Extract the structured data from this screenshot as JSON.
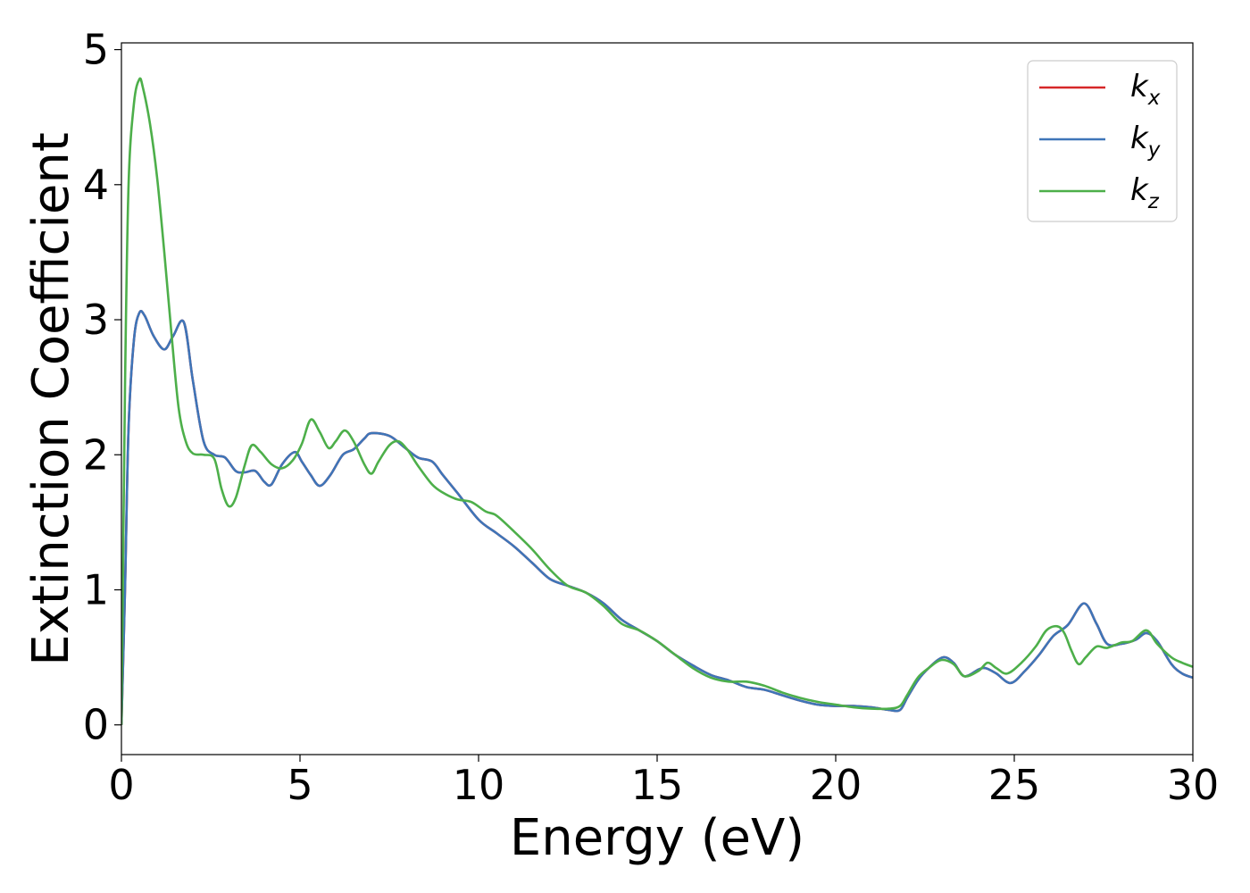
{
  "chart_data": {
    "type": "line",
    "xlabel": "Energy (eV)",
    "ylabel": "Extinction Coefficient",
    "xlim": [
      0,
      30
    ],
    "ylim": [
      -0.22,
      5.05
    ],
    "xticks": [
      0,
      5,
      10,
      15,
      20,
      25,
      30
    ],
    "xtick_labels": [
      "0",
      "5",
      "10",
      "15",
      "20",
      "25",
      "30"
    ],
    "yticks": [
      0,
      1,
      2,
      3,
      4,
      5
    ],
    "ytick_labels": [
      "0",
      "1",
      "2",
      "3",
      "4",
      "5"
    ],
    "grid": false,
    "legend_position": "top-right",
    "series": [
      {
        "name": "k_x",
        "legend_main": "k",
        "legend_sub": "x",
        "color": "#d62728",
        "x": [
          0,
          0.1,
          0.2,
          0.35,
          0.5,
          0.65,
          0.9,
          1.2,
          1.45,
          1.75,
          2.0,
          2.3,
          2.6,
          2.9,
          3.2,
          3.45,
          3.75,
          4.0,
          4.2,
          4.5,
          4.85,
          5.05,
          5.3,
          5.55,
          5.85,
          6.2,
          6.5,
          6.8,
          7.0,
          7.5,
          7.9,
          8.3,
          8.7,
          9.0,
          9.4,
          10.0,
          10.5,
          11.0,
          11.5,
          12.0,
          12.5,
          13.0,
          13.5,
          14.0,
          14.5,
          15.0,
          15.5,
          16.0,
          16.5,
          17.0,
          17.5,
          18.0,
          18.5,
          19.0,
          19.5,
          20.0,
          20.5,
          21.0,
          21.5,
          21.8,
          22.0,
          22.3,
          22.6,
          23.0,
          23.3,
          23.6,
          24.0,
          24.2,
          24.5,
          24.9,
          25.3,
          25.7,
          26.1,
          26.5,
          26.95,
          27.3,
          27.6,
          28.0,
          28.4,
          28.7,
          29.0,
          29.4,
          29.7,
          30.0
        ],
        "y": [
          0.0,
          1.0,
          2.2,
          2.85,
          3.05,
          3.03,
          2.88,
          2.78,
          2.88,
          2.98,
          2.55,
          2.1,
          2.0,
          1.98,
          1.88,
          1.87,
          1.88,
          1.8,
          1.78,
          1.93,
          2.02,
          1.95,
          1.85,
          1.77,
          1.85,
          2.0,
          2.04,
          2.12,
          2.16,
          2.14,
          2.06,
          1.98,
          1.95,
          1.85,
          1.72,
          1.52,
          1.42,
          1.32,
          1.2,
          1.08,
          1.03,
          0.98,
          0.9,
          0.78,
          0.7,
          0.62,
          0.52,
          0.44,
          0.37,
          0.33,
          0.28,
          0.26,
          0.22,
          0.18,
          0.15,
          0.14,
          0.14,
          0.13,
          0.11,
          0.11,
          0.2,
          0.33,
          0.42,
          0.5,
          0.46,
          0.36,
          0.41,
          0.42,
          0.38,
          0.31,
          0.4,
          0.52,
          0.66,
          0.74,
          0.9,
          0.75,
          0.6,
          0.6,
          0.63,
          0.68,
          0.62,
          0.45,
          0.38,
          0.35
        ]
      },
      {
        "name": "k_y",
        "legend_main": "k",
        "legend_sub": "y",
        "color": "#3e75b8",
        "x": [
          0,
          0.1,
          0.2,
          0.35,
          0.5,
          0.65,
          0.9,
          1.2,
          1.45,
          1.75,
          2.0,
          2.3,
          2.6,
          2.9,
          3.2,
          3.45,
          3.75,
          4.0,
          4.2,
          4.5,
          4.85,
          5.05,
          5.3,
          5.55,
          5.85,
          6.2,
          6.5,
          6.8,
          7.0,
          7.5,
          7.9,
          8.3,
          8.7,
          9.0,
          9.4,
          10.0,
          10.5,
          11.0,
          11.5,
          12.0,
          12.5,
          13.0,
          13.5,
          14.0,
          14.5,
          15.0,
          15.5,
          16.0,
          16.5,
          17.0,
          17.5,
          18.0,
          18.5,
          19.0,
          19.5,
          20.0,
          20.5,
          21.0,
          21.5,
          21.8,
          22.0,
          22.3,
          22.6,
          23.0,
          23.3,
          23.6,
          24.0,
          24.2,
          24.5,
          24.9,
          25.3,
          25.7,
          26.1,
          26.5,
          26.95,
          27.3,
          27.6,
          28.0,
          28.4,
          28.7,
          29.0,
          29.4,
          29.7,
          30.0
        ],
        "y": [
          0.0,
          1.0,
          2.2,
          2.85,
          3.05,
          3.03,
          2.88,
          2.78,
          2.88,
          2.98,
          2.55,
          2.1,
          2.0,
          1.98,
          1.88,
          1.87,
          1.88,
          1.8,
          1.78,
          1.93,
          2.02,
          1.95,
          1.85,
          1.77,
          1.85,
          2.0,
          2.04,
          2.12,
          2.16,
          2.14,
          2.06,
          1.98,
          1.95,
          1.85,
          1.72,
          1.52,
          1.42,
          1.32,
          1.2,
          1.08,
          1.03,
          0.98,
          0.9,
          0.78,
          0.7,
          0.62,
          0.52,
          0.44,
          0.37,
          0.33,
          0.28,
          0.26,
          0.22,
          0.18,
          0.15,
          0.14,
          0.14,
          0.13,
          0.11,
          0.11,
          0.2,
          0.33,
          0.42,
          0.5,
          0.46,
          0.36,
          0.41,
          0.42,
          0.38,
          0.31,
          0.4,
          0.52,
          0.66,
          0.74,
          0.9,
          0.75,
          0.6,
          0.6,
          0.63,
          0.68,
          0.62,
          0.45,
          0.38,
          0.35
        ]
      },
      {
        "name": "k_z",
        "legend_main": "k",
        "legend_sub": "z",
        "color": "#4daf4a",
        "x": [
          0,
          0.1,
          0.2,
          0.35,
          0.5,
          0.6,
          0.8,
          1.0,
          1.2,
          1.4,
          1.6,
          1.8,
          2.0,
          2.3,
          2.6,
          2.8,
          3.0,
          3.2,
          3.45,
          3.65,
          3.9,
          4.2,
          4.5,
          4.8,
          5.05,
          5.3,
          5.55,
          5.8,
          6.0,
          6.25,
          6.5,
          6.8,
          7.0,
          7.2,
          7.5,
          7.75,
          8.0,
          8.3,
          8.7,
          9.0,
          9.4,
          9.8,
          10.2,
          10.5,
          11.0,
          11.5,
          12.0,
          12.5,
          13.0,
          13.5,
          14.0,
          14.5,
          15.0,
          15.5,
          16.0,
          16.5,
          17.0,
          17.5,
          18.0,
          18.5,
          19.0,
          19.5,
          20.0,
          20.5,
          21.0,
          21.5,
          21.8,
          22.0,
          22.3,
          22.6,
          22.95,
          23.3,
          23.6,
          24.0,
          24.25,
          24.5,
          24.8,
          25.2,
          25.6,
          25.9,
          26.2,
          26.4,
          26.6,
          26.8,
          27.0,
          27.3,
          27.6,
          28.0,
          28.3,
          28.7,
          29.0,
          29.4,
          29.7,
          30.0
        ],
        "y": [
          0.0,
          2.5,
          4.0,
          4.6,
          4.78,
          4.72,
          4.45,
          4.05,
          3.5,
          2.9,
          2.35,
          2.1,
          2.01,
          2.0,
          1.97,
          1.75,
          1.62,
          1.68,
          1.92,
          2.07,
          2.02,
          1.93,
          1.9,
          1.96,
          2.08,
          2.26,
          2.17,
          2.05,
          2.1,
          2.18,
          2.1,
          1.93,
          1.86,
          1.95,
          2.07,
          2.1,
          2.04,
          1.92,
          1.78,
          1.72,
          1.67,
          1.65,
          1.58,
          1.55,
          1.43,
          1.3,
          1.15,
          1.03,
          0.98,
          0.88,
          0.75,
          0.7,
          0.62,
          0.52,
          0.42,
          0.35,
          0.32,
          0.32,
          0.29,
          0.24,
          0.2,
          0.17,
          0.15,
          0.13,
          0.12,
          0.12,
          0.14,
          0.22,
          0.35,
          0.42,
          0.48,
          0.45,
          0.36,
          0.4,
          0.46,
          0.42,
          0.38,
          0.46,
          0.58,
          0.7,
          0.73,
          0.68,
          0.55,
          0.45,
          0.5,
          0.58,
          0.57,
          0.61,
          0.62,
          0.7,
          0.6,
          0.5,
          0.46,
          0.43
        ]
      }
    ]
  }
}
